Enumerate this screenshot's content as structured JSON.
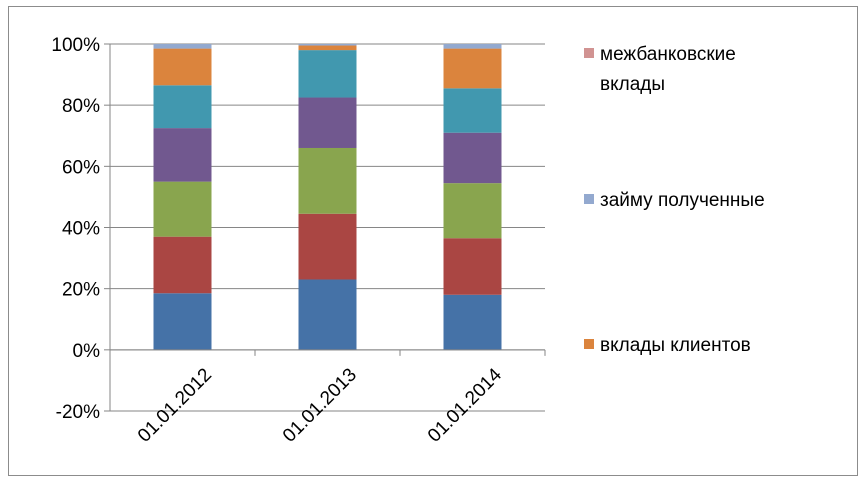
{
  "chart_data": {
    "type": "bar",
    "stacked": true,
    "percent": true,
    "categories": [
      "01.01.2012",
      "01.01.2013",
      "01.01.2014"
    ],
    "ylim": [
      -20,
      100
    ],
    "yticks": [
      "-20%",
      "0%",
      "20%",
      "40%",
      "60%",
      "80%",
      "100%"
    ],
    "grid": true,
    "legend_position": "right",
    "series": [
      {
        "color": "#4572A7",
        "values": [
          18.5,
          23,
          18
        ]
      },
      {
        "color": "#AA4643",
        "values": [
          18.5,
          21.5,
          18.5
        ]
      },
      {
        "color": "#89A54E",
        "values": [
          18,
          21.5,
          18
        ]
      },
      {
        "color": "#71588F",
        "values": [
          17.5,
          16.5,
          16.5
        ]
      },
      {
        "color": "#4198AF",
        "values": [
          14,
          15.5,
          14.5
        ]
      },
      {
        "name": "вклады клиентов",
        "color": "#DB843D",
        "values": [
          12,
          1.5,
          13
        ]
      },
      {
        "name": "займу полученные",
        "color": "#93A9CF",
        "values": [
          1.5,
          0.5,
          1.5
        ]
      },
      {
        "name": "межбанковские вклады",
        "color": "#D19392",
        "values": [
          0,
          0,
          0
        ]
      }
    ],
    "legend": [
      {
        "lines": [
          "межбанковские",
          "вклады"
        ],
        "color": "#D19392"
      },
      {
        "lines": [
          "займу полученные"
        ],
        "color": "#93A9CF"
      },
      {
        "lines": [
          "вклады клиентов"
        ],
        "color": "#DB843D"
      }
    ]
  }
}
